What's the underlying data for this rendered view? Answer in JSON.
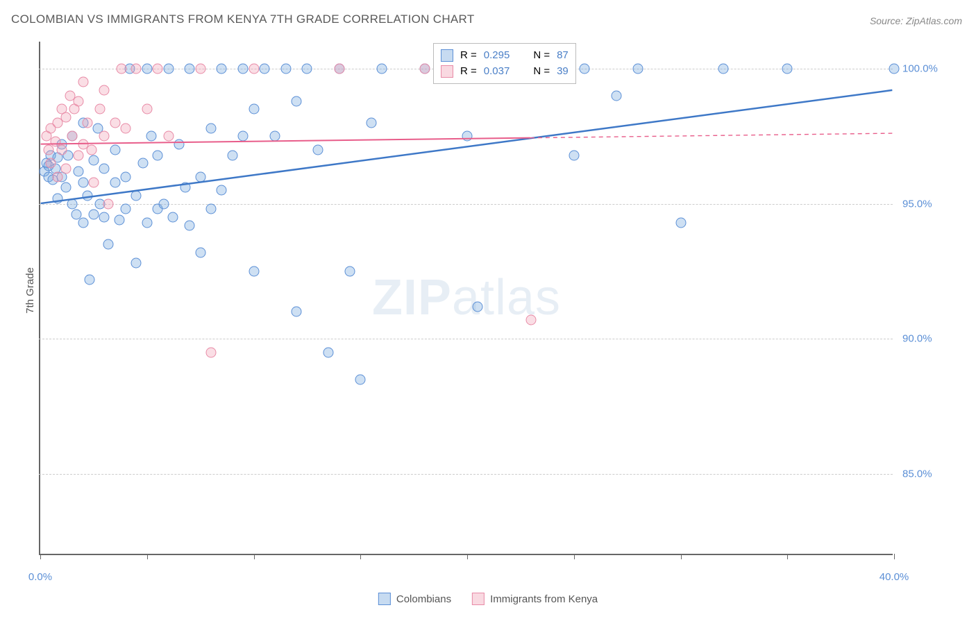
{
  "title": "COLOMBIAN VS IMMIGRANTS FROM KENYA 7TH GRADE CORRELATION CHART",
  "source": "Source: ZipAtlas.com",
  "y_axis_label": "7th Grade",
  "watermark": {
    "part1": "ZIP",
    "part2": "atlas"
  },
  "chart": {
    "type": "scatter",
    "x_range": [
      0,
      40
    ],
    "y_range": [
      82,
      101
    ],
    "background_color": "#ffffff",
    "grid_color": "#cccccc",
    "axis_color": "#666666",
    "y_ticks": [
      {
        "value": 85.0,
        "label": "85.0%"
      },
      {
        "value": 90.0,
        "label": "90.0%"
      },
      {
        "value": 95.0,
        "label": "95.0%"
      },
      {
        "value": 100.0,
        "label": "100.0%"
      }
    ],
    "x_ticks": [
      {
        "value": 0.0,
        "label": "0.0%"
      },
      {
        "value": 5,
        "label": ""
      },
      {
        "value": 10,
        "label": ""
      },
      {
        "value": 15,
        "label": ""
      },
      {
        "value": 20,
        "label": ""
      },
      {
        "value": 25,
        "label": ""
      },
      {
        "value": 30,
        "label": ""
      },
      {
        "value": 35,
        "label": ""
      },
      {
        "value": 40.0,
        "label": "40.0%"
      }
    ],
    "series": [
      {
        "name": "Colombians",
        "color_fill": "rgba(116,166,220,0.35)",
        "color_stroke": "#5b8fd6",
        "css_class": "blue",
        "R": "0.295",
        "N": "87",
        "trend": {
          "x1": 0,
          "y1": 95.0,
          "x2": 40,
          "y2": 99.2,
          "color": "#3e78c7",
          "width": 2.5
        },
        "points": [
          [
            0.2,
            96.2
          ],
          [
            0.3,
            96.5
          ],
          [
            0.4,
            96.0
          ],
          [
            0.4,
            96.4
          ],
          [
            0.5,
            96.8
          ],
          [
            0.6,
            95.9
          ],
          [
            0.7,
            96.3
          ],
          [
            0.8,
            95.2
          ],
          [
            0.8,
            96.7
          ],
          [
            1.0,
            96.0
          ],
          [
            1.0,
            97.2
          ],
          [
            1.2,
            95.6
          ],
          [
            1.3,
            96.8
          ],
          [
            1.5,
            95.0
          ],
          [
            1.5,
            97.5
          ],
          [
            1.7,
            94.6
          ],
          [
            1.8,
            96.2
          ],
          [
            2.0,
            94.3
          ],
          [
            2.0,
            95.8
          ],
          [
            2.0,
            98.0
          ],
          [
            2.2,
            95.3
          ],
          [
            2.3,
            92.2
          ],
          [
            2.5,
            96.6
          ],
          [
            2.5,
            94.6
          ],
          [
            2.7,
            97.8
          ],
          [
            2.8,
            95.0
          ],
          [
            3.0,
            96.3
          ],
          [
            3.0,
            94.5
          ],
          [
            3.2,
            93.5
          ],
          [
            3.5,
            95.8
          ],
          [
            3.5,
            97.0
          ],
          [
            3.7,
            94.4
          ],
          [
            4.0,
            96.0
          ],
          [
            4.0,
            94.8
          ],
          [
            4.2,
            100.0
          ],
          [
            4.5,
            95.3
          ],
          [
            4.5,
            92.8
          ],
          [
            4.8,
            96.5
          ],
          [
            5.0,
            94.3
          ],
          [
            5.0,
            100.0
          ],
          [
            5.2,
            97.5
          ],
          [
            5.5,
            94.8
          ],
          [
            5.5,
            96.8
          ],
          [
            5.8,
            95.0
          ],
          [
            6.0,
            100.0
          ],
          [
            6.2,
            94.5
          ],
          [
            6.5,
            97.2
          ],
          [
            6.8,
            95.6
          ],
          [
            7.0,
            94.2
          ],
          [
            7.0,
            100.0
          ],
          [
            7.5,
            96.0
          ],
          [
            7.5,
            93.2
          ],
          [
            8.0,
            94.8
          ],
          [
            8.0,
            97.8
          ],
          [
            8.5,
            100.0
          ],
          [
            8.5,
            95.5
          ],
          [
            9.0,
            96.8
          ],
          [
            9.5,
            97.5
          ],
          [
            9.5,
            100.0
          ],
          [
            10.0,
            98.5
          ],
          [
            10.0,
            92.5
          ],
          [
            10.5,
            100.0
          ],
          [
            11.0,
            97.5
          ],
          [
            11.5,
            100.0
          ],
          [
            12.0,
            98.8
          ],
          [
            12.0,
            91.0
          ],
          [
            12.5,
            100.0
          ],
          [
            13.0,
            97.0
          ],
          [
            13.5,
            89.5
          ],
          [
            14.0,
            100.0
          ],
          [
            14.5,
            92.5
          ],
          [
            15.0,
            88.5
          ],
          [
            15.5,
            98.0
          ],
          [
            16.0,
            100.0
          ],
          [
            18.0,
            100.0
          ],
          [
            20.0,
            97.5
          ],
          [
            20.5,
            91.2
          ],
          [
            21.0,
            100.0
          ],
          [
            24.0,
            100.0
          ],
          [
            25.0,
            96.8
          ],
          [
            25.5,
            100.0
          ],
          [
            27.0,
            99.0
          ],
          [
            28.0,
            100.0
          ],
          [
            30.0,
            94.3
          ],
          [
            32.0,
            100.0
          ],
          [
            35.0,
            100.0
          ],
          [
            40.0,
            100.0
          ]
        ]
      },
      {
        "name": "Immigrants from Kenya",
        "color_fill": "rgba(240,160,180,0.35)",
        "color_stroke": "#e88aa6",
        "css_class": "pink",
        "R": "0.037",
        "N": "39",
        "trend": {
          "x1": 0,
          "y1": 97.2,
          "x2": 40,
          "y2": 97.6,
          "color": "#e85d8a",
          "width": 2
        },
        "points": [
          [
            0.3,
            97.5
          ],
          [
            0.4,
            97.0
          ],
          [
            0.5,
            97.8
          ],
          [
            0.5,
            96.5
          ],
          [
            0.7,
            97.3
          ],
          [
            0.8,
            98.0
          ],
          [
            0.8,
            96.0
          ],
          [
            1.0,
            98.5
          ],
          [
            1.0,
            97.0
          ],
          [
            1.2,
            98.2
          ],
          [
            1.2,
            96.3
          ],
          [
            1.4,
            99.0
          ],
          [
            1.5,
            97.5
          ],
          [
            1.6,
            98.5
          ],
          [
            1.8,
            96.8
          ],
          [
            1.8,
            98.8
          ],
          [
            2.0,
            97.2
          ],
          [
            2.0,
            99.5
          ],
          [
            2.2,
            98.0
          ],
          [
            2.4,
            97.0
          ],
          [
            2.5,
            95.8
          ],
          [
            2.8,
            98.5
          ],
          [
            3.0,
            97.5
          ],
          [
            3.0,
            99.2
          ],
          [
            3.2,
            95.0
          ],
          [
            3.5,
            98.0
          ],
          [
            3.8,
            100.0
          ],
          [
            4.0,
            97.8
          ],
          [
            4.5,
            100.0
          ],
          [
            5.0,
            98.5
          ],
          [
            5.5,
            100.0
          ],
          [
            6.0,
            97.5
          ],
          [
            7.5,
            100.0
          ],
          [
            8.0,
            89.5
          ],
          [
            10.0,
            100.0
          ],
          [
            14.0,
            100.0
          ],
          [
            18.0,
            100.0
          ],
          [
            22.0,
            100.0
          ],
          [
            23.0,
            90.7
          ]
        ]
      }
    ]
  },
  "bottom_legend": [
    {
      "label": "Colombians",
      "swatch_class": "blue"
    },
    {
      "label": "Immigrants from Kenya",
      "swatch_class": "pink"
    }
  ]
}
